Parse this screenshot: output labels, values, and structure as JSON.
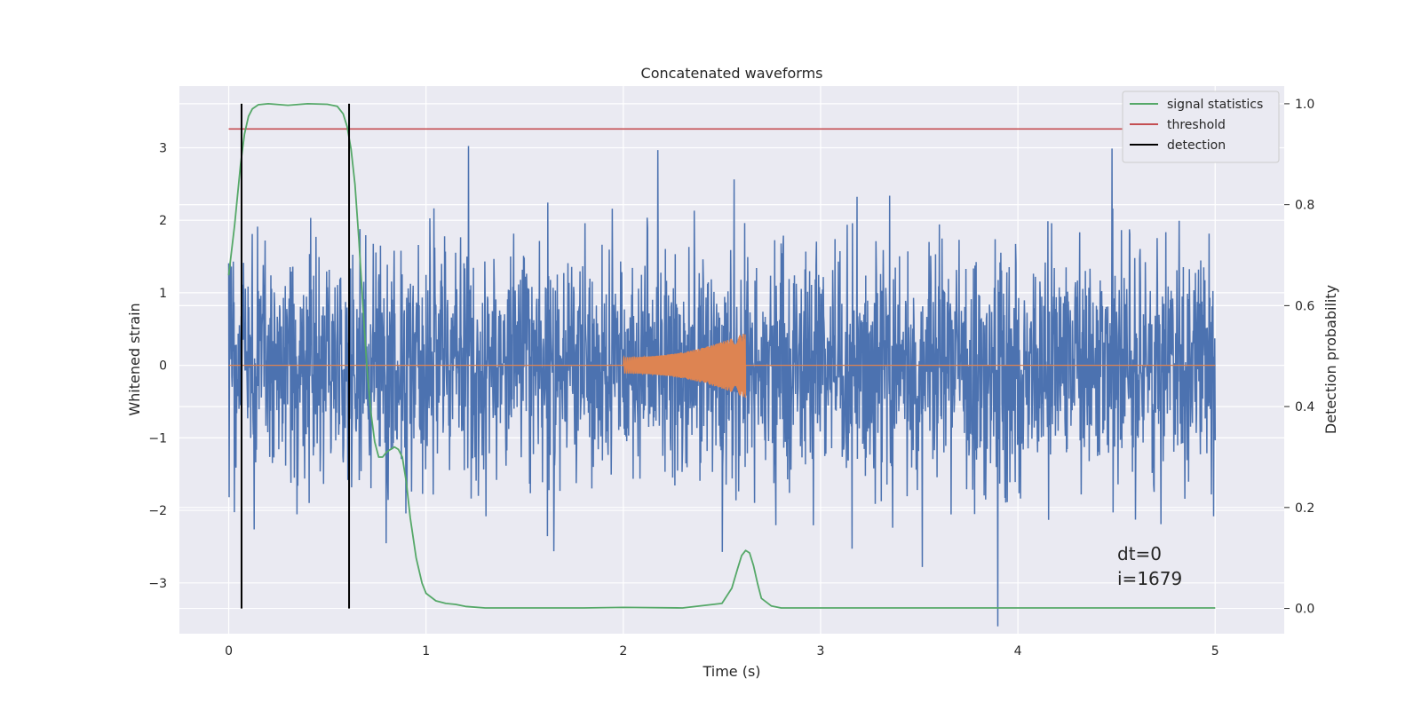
{
  "chart_data": {
    "type": "line",
    "title": "Concatenated waveforms",
    "xlabel": "Time (s)",
    "ylabel": "Whitened strain",
    "y2label": "Detection probability",
    "xlim": [
      -0.25,
      5.35
    ],
    "ylim": [
      -3.7,
      3.85
    ],
    "y2lim": [
      -0.05,
      1.035
    ],
    "x_ticks": [
      0,
      1,
      2,
      3,
      4,
      5
    ],
    "y_ticks": [
      -3,
      -2,
      -1,
      0,
      1,
      2,
      3
    ],
    "y2_ticks": [
      0.0,
      0.2,
      0.4,
      0.6,
      0.8,
      1.0
    ],
    "x_tick_labels": [
      "0",
      "1",
      "2",
      "3",
      "4",
      "5"
    ],
    "y_tick_labels": [
      "−3",
      "−2",
      "−1",
      "0",
      "1",
      "2",
      "3"
    ],
    "y2_tick_labels": [
      "0.0",
      "0.2",
      "0.4",
      "0.6",
      "0.8",
      "1.0"
    ],
    "grid": true,
    "legend_position": "top-right",
    "series": [
      {
        "name": "",
        "role": "whitened strain noise",
        "color": "#4c72b0",
        "axis": "left",
        "x_range": [
          0,
          5
        ],
        "typical_amplitude": 0.8,
        "peak_range": [
          -3.6,
          3.3
        ]
      },
      {
        "name": "",
        "role": "injected chirp waveform",
        "color": "#dd8452",
        "axis": "left",
        "x_range": [
          0,
          5
        ],
        "chirp_x_range": [
          2.0,
          2.62
        ],
        "chirp_peak_amplitude": 0.45
      },
      {
        "name": "signal statistics",
        "color": "#55a868",
        "axis": "right",
        "x": [
          0,
          0.03,
          0.06,
          0.08,
          0.1,
          0.12,
          0.15,
          0.2,
          0.3,
          0.4,
          0.5,
          0.55,
          0.58,
          0.6,
          0.62,
          0.64,
          0.66,
          0.68,
          0.7,
          0.72,
          0.74,
          0.76,
          0.78,
          0.8,
          0.82,
          0.84,
          0.86,
          0.88,
          0.9,
          0.92,
          0.95,
          0.98,
          1.0,
          1.05,
          1.1,
          1.15,
          1.2,
          1.3,
          1.5,
          1.8,
          2.0,
          2.3,
          2.5,
          2.55,
          2.58,
          2.6,
          2.62,
          2.64,
          2.66,
          2.68,
          2.7,
          2.75,
          2.8,
          3.0,
          3.5,
          4.0,
          4.5,
          5.0
        ],
        "values": [
          0.66,
          0.76,
          0.88,
          0.94,
          0.975,
          0.99,
          0.998,
          1.0,
          0.997,
          1.0,
          0.999,
          0.995,
          0.98,
          0.955,
          0.91,
          0.84,
          0.73,
          0.6,
          0.48,
          0.39,
          0.33,
          0.3,
          0.3,
          0.31,
          0.315,
          0.32,
          0.315,
          0.3,
          0.25,
          0.18,
          0.1,
          0.05,
          0.03,
          0.015,
          0.01,
          0.008,
          0.004,
          0.001,
          0.001,
          0.001,
          0.002,
          0.001,
          0.01,
          0.04,
          0.08,
          0.105,
          0.115,
          0.11,
          0.085,
          0.05,
          0.02,
          0.005,
          0.001,
          0.001,
          0.001,
          0.001,
          0.001,
          0.001
        ]
      },
      {
        "name": "threshold",
        "color": "#c44e52",
        "axis": "right",
        "x": [
          0,
          5.1
        ],
        "values": [
          0.95,
          0.95
        ]
      },
      {
        "name": "detection",
        "color": "#000000",
        "axis": "right",
        "type": "vlines",
        "x": [
          0.065,
          0.61
        ],
        "y_range": [
          0.0,
          1.0
        ]
      }
    ],
    "annotations": [
      "dt=0",
      "i=1679"
    ]
  },
  "colors": {
    "plot_background": "#eaeaf2",
    "grid": "#ffffff",
    "text": "#262626"
  }
}
